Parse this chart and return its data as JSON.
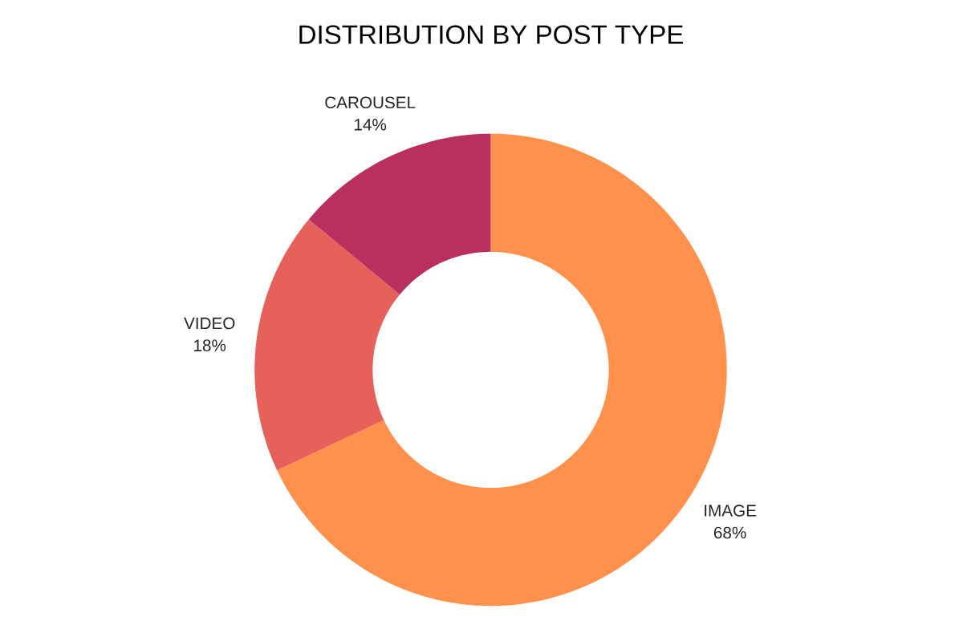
{
  "chart_data": {
    "type": "donut",
    "title": "DISTRIBUTION BY POST TYPE",
    "categories": [
      "IMAGE",
      "VIDEO",
      "CAROUSEL"
    ],
    "values": [
      68,
      18,
      14
    ],
    "colors": [
      "#ff914d",
      "#e5615a",
      "#b9305e"
    ],
    "value_labels": [
      "68%",
      "18%",
      "14%"
    ]
  }
}
